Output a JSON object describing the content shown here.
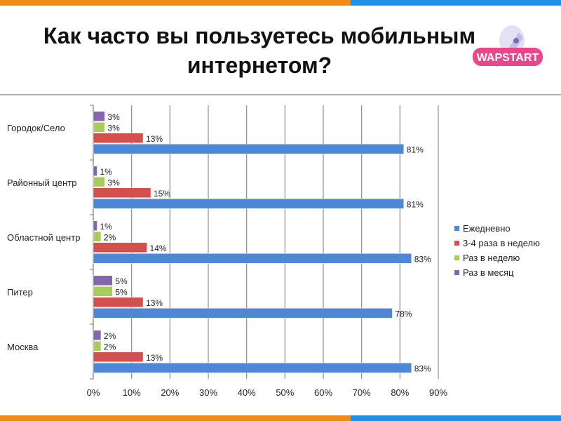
{
  "page": {
    "title_line1": "Как часто вы пользуетесь мобильным",
    "title_line2": "интернетом?",
    "logo_text": "WAPSTART"
  },
  "colors": {
    "stripe_orange": "#f28a14",
    "stripe_blue": "#1e90e8",
    "series": [
      "#4f86d6",
      "#d2504d",
      "#a8cc5c",
      "#8466aa"
    ]
  },
  "chart_data": {
    "type": "bar",
    "orientation": "horizontal",
    "categories": [
      "Городок/Село",
      "Районный центр",
      "Областной центр",
      "Питер",
      "Москва"
    ],
    "series": [
      {
        "name": "Ежедневно",
        "values": [
          81,
          81,
          83,
          78,
          83
        ]
      },
      {
        "name": "3-4 раза в неделю",
        "values": [
          13,
          15,
          14,
          13,
          13
        ]
      },
      {
        "name": "Раз в неделю",
        "values": [
          3,
          3,
          2,
          5,
          2
        ]
      },
      {
        "name": "Раз в месяц",
        "values": [
          3,
          1,
          1,
          5,
          2
        ]
      }
    ],
    "x_ticks": [
      "0%",
      "10%",
      "20%",
      "30%",
      "40%",
      "50%",
      "60%",
      "70%",
      "80%",
      "90%"
    ],
    "xlim": [
      0,
      90
    ],
    "value_suffix": "%",
    "grid": true,
    "legend_position": "right"
  }
}
